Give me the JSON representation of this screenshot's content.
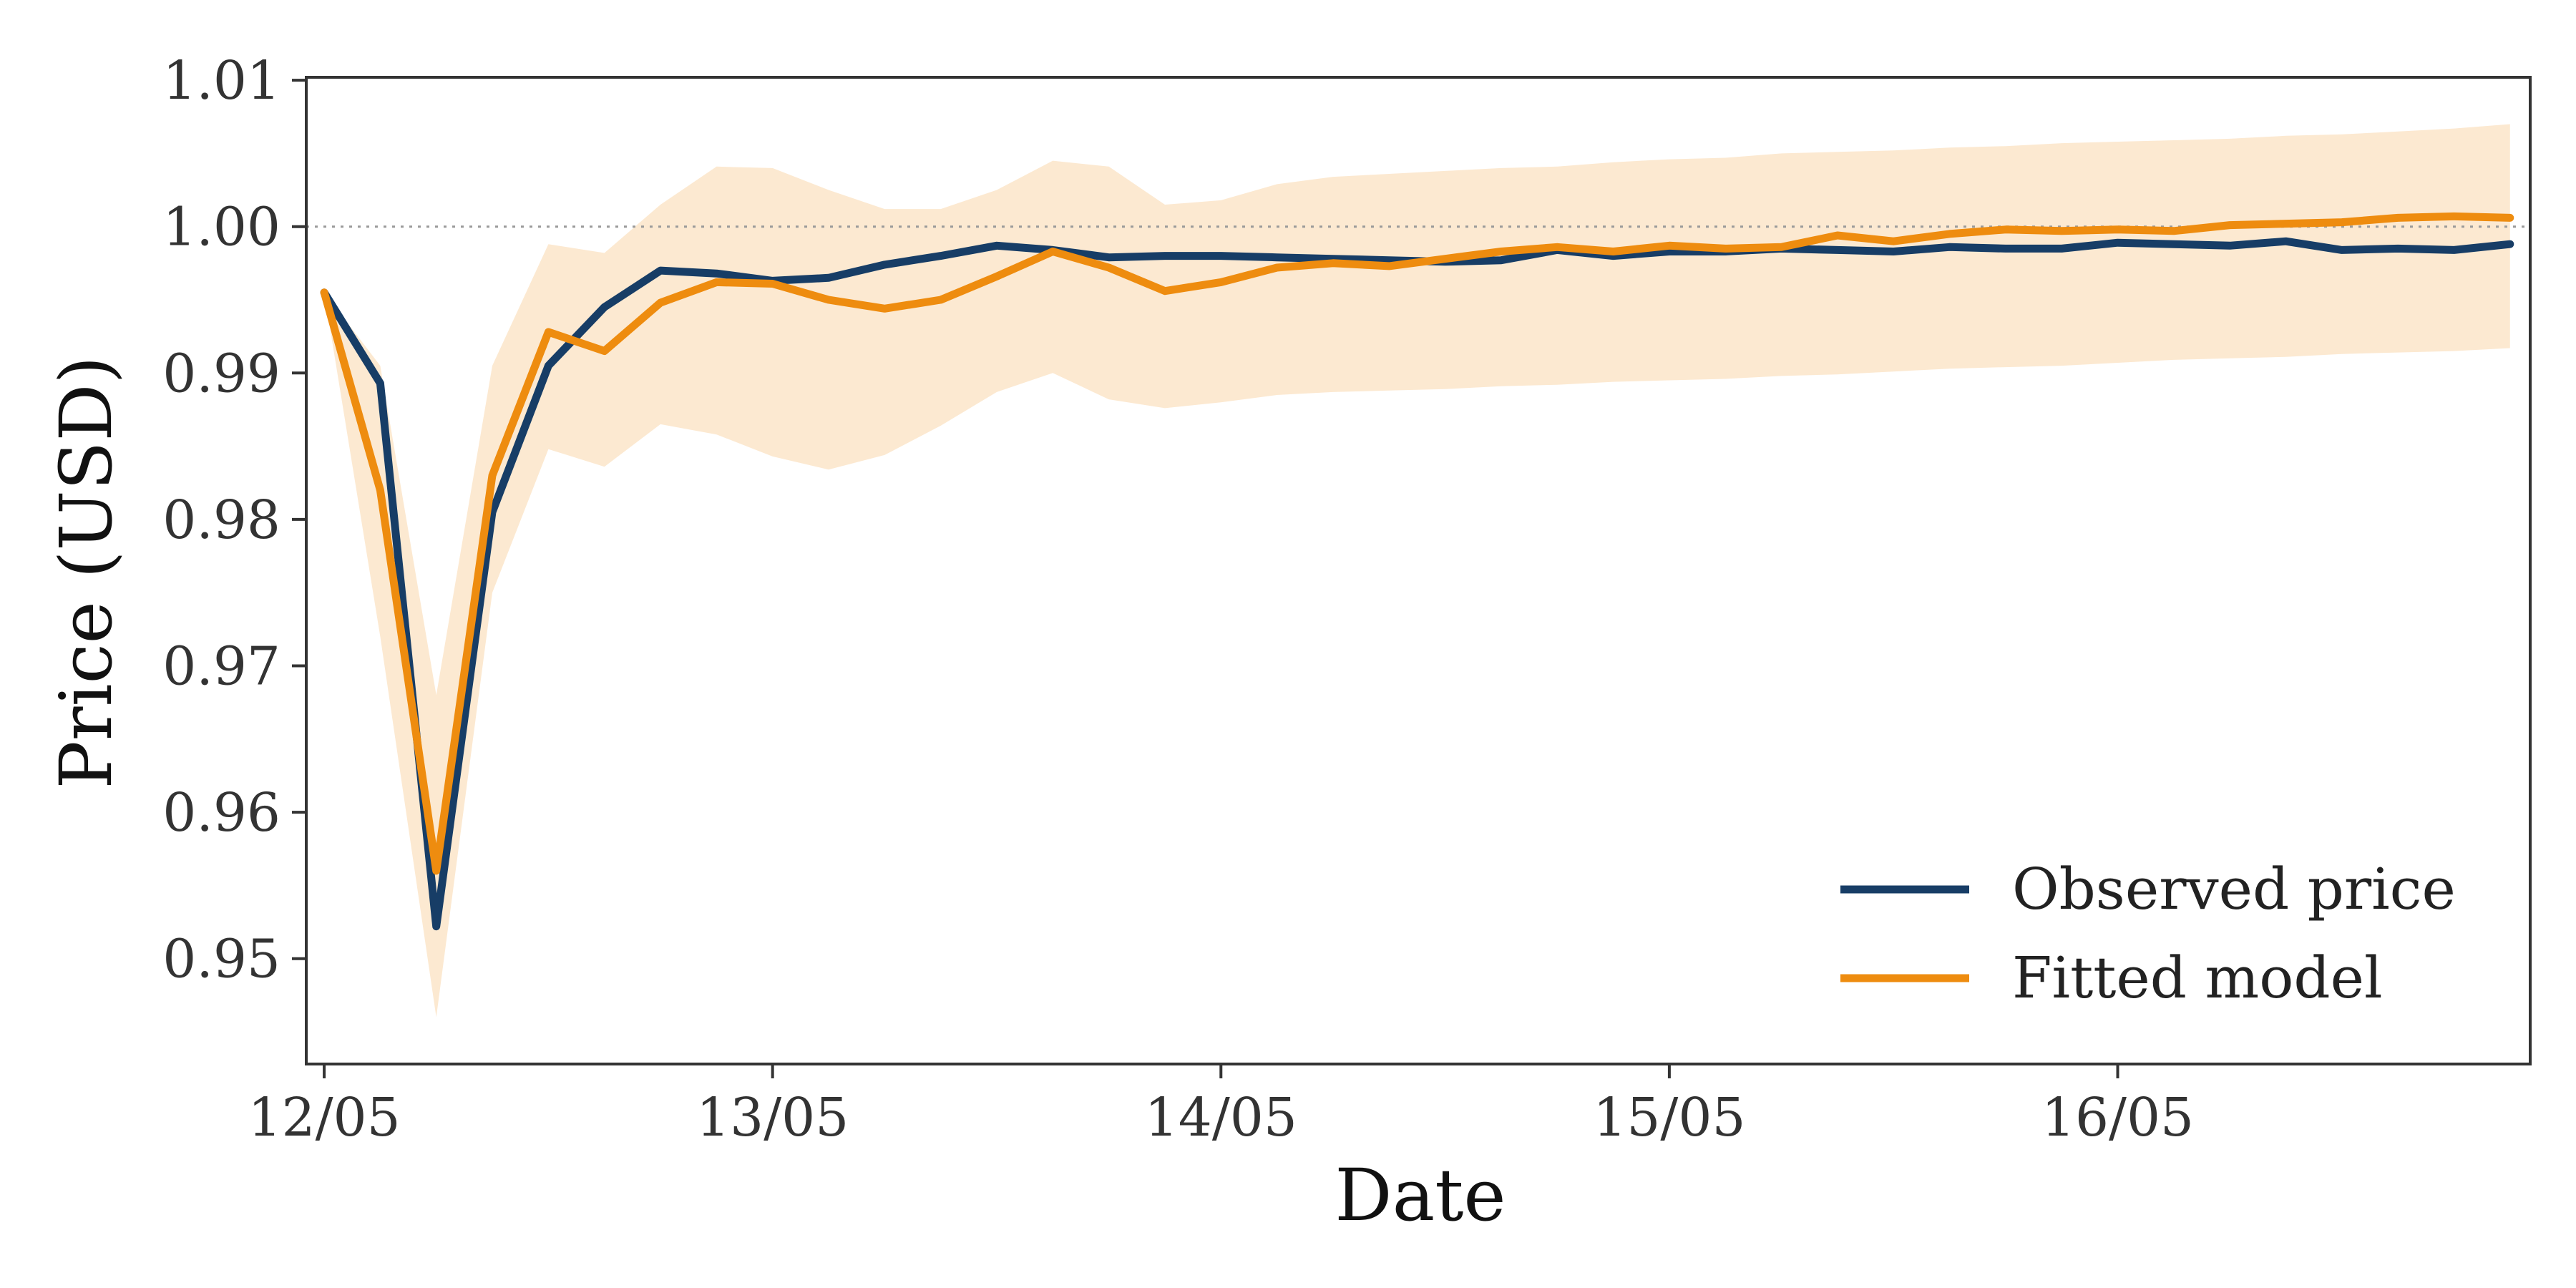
{
  "chart_data": {
    "type": "line",
    "xlabel": "Date",
    "ylabel": "Price (USD)",
    "x_tick_labels": [
      "12/05",
      "13/05",
      "14/05",
      "15/05",
      "16/05"
    ],
    "y_tick_labels": [
      "0.95",
      "0.96",
      "0.97",
      "0.98",
      "0.99",
      "1.00",
      "1.01"
    ],
    "y_ticks": [
      0.95,
      0.96,
      0.97,
      0.98,
      0.99,
      1.0,
      1.01
    ],
    "xlim": [
      -0.04,
      4.92
    ],
    "ylim": [
      0.9428,
      1.0102
    ],
    "reference_line": {
      "y": 1.0,
      "style": "dotted"
    },
    "grid": false,
    "legend": {
      "placement": "lower-right"
    },
    "series": [
      {
        "name": "Observed price",
        "color": "#173d66",
        "x": [
          0,
          0.125,
          0.25,
          0.375,
          0.5,
          0.625,
          0.75,
          0.875,
          1,
          1.125,
          1.25,
          1.375,
          1.5,
          1.625,
          1.75,
          1.875,
          2,
          2.125,
          2.25,
          2.375,
          2.5,
          2.625,
          2.75,
          2.875,
          3,
          3.125,
          3.25,
          3.375,
          3.5,
          3.625,
          3.75,
          3.875,
          4,
          4.125,
          4.25,
          4.375,
          4.5,
          4.625,
          4.75,
          4.875
        ],
        "y": [
          0.9955,
          0.9893,
          0.9522,
          0.9805,
          0.9905,
          0.9945,
          0.997,
          0.9968,
          0.9963,
          0.9965,
          0.9974,
          0.998,
          0.9987,
          0.9984,
          0.9979,
          0.998,
          0.998,
          0.9979,
          0.9978,
          0.9977,
          0.9976,
          0.9977,
          0.9984,
          0.998,
          0.9983,
          0.9983,
          0.9985,
          0.9984,
          0.9983,
          0.9986,
          0.9985,
          0.9985,
          0.9989,
          0.9988,
          0.9987,
          0.999,
          0.9984,
          0.9985,
          0.9984,
          0.9988
        ]
      },
      {
        "name": "Fitted model",
        "color": "#ee8c0f",
        "x": [
          0,
          0.125,
          0.25,
          0.375,
          0.5,
          0.625,
          0.75,
          0.875,
          1,
          1.125,
          1.25,
          1.375,
          1.5,
          1.625,
          1.75,
          1.875,
          2,
          2.125,
          2.25,
          2.375,
          2.5,
          2.625,
          2.75,
          2.875,
          3,
          3.125,
          3.25,
          3.375,
          3.5,
          3.625,
          3.75,
          3.875,
          4,
          4.125,
          4.25,
          4.375,
          4.5,
          4.625,
          4.75,
          4.875
        ],
        "y": [
          0.9955,
          0.982,
          0.956,
          0.983,
          0.9928,
          0.9915,
          0.9948,
          0.9962,
          0.9961,
          0.995,
          0.9944,
          0.995,
          0.9966,
          0.9983,
          0.9972,
          0.9956,
          0.9962,
          0.9972,
          0.9975,
          0.9973,
          0.9978,
          0.9983,
          0.9986,
          0.9983,
          0.9987,
          0.9985,
          0.9986,
          0.9994,
          0.999,
          0.9995,
          0.9998,
          0.9997,
          0.9998,
          0.9997,
          1.0001,
          1.0002,
          1.0003,
          1.0006,
          1.0007,
          1.0006
        ]
      }
    ],
    "band": {
      "color": "#fce9d1",
      "x": [
        0,
        0.125,
        0.25,
        0.375,
        0.5,
        0.625,
        0.75,
        0.875,
        1,
        1.125,
        1.25,
        1.375,
        1.5,
        1.625,
        1.75,
        1.875,
        2,
        2.125,
        2.25,
        2.375,
        2.5,
        2.625,
        2.75,
        2.875,
        3,
        3.125,
        3.25,
        3.375,
        3.5,
        3.625,
        3.75,
        3.875,
        4,
        4.125,
        4.25,
        4.375,
        4.5,
        4.625,
        4.75,
        4.875
      ],
      "upper": [
        0.9955,
        0.9905,
        0.968,
        0.9905,
        0.9988,
        0.9982,
        1.0015,
        1.0041,
        1.004,
        1.0025,
        1.0012,
        1.0012,
        1.0025,
        1.0045,
        1.0041,
        1.0015,
        1.0018,
        1.0029,
        1.0034,
        1.0036,
        1.0038,
        1.004,
        1.0041,
        1.0044,
        1.0046,
        1.0047,
        1.005,
        1.0051,
        1.0052,
        1.0054,
        1.0055,
        1.0057,
        1.0058,
        1.0059,
        1.006,
        1.0062,
        1.0063,
        1.0065,
        1.0067,
        1.007
      ],
      "lower": [
        0.9955,
        0.972,
        0.946,
        0.975,
        0.9848,
        0.9836,
        0.9865,
        0.9858,
        0.9843,
        0.9834,
        0.9844,
        0.9864,
        0.9887,
        0.99,
        0.9882,
        0.9876,
        0.988,
        0.9885,
        0.9887,
        0.9888,
        0.9889,
        0.9891,
        0.9892,
        0.9894,
        0.9895,
        0.9896,
        0.9898,
        0.9899,
        0.9901,
        0.9903,
        0.9904,
        0.9905,
        0.9907,
        0.9909,
        0.991,
        0.9911,
        0.9913,
        0.9914,
        0.9915,
        0.9917
      ]
    }
  }
}
